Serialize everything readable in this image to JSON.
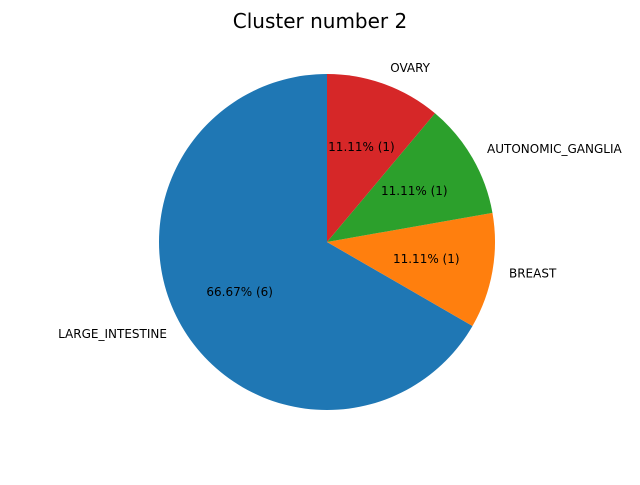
{
  "chart_data": {
    "type": "pie",
    "title": "Cluster number 2",
    "slices": [
      {
        "label": "LARGE_INTESTINE",
        "value": 6,
        "percent": "66.67%",
        "autopct": "66.67%  (6)",
        "color": "#1f77b4"
      },
      {
        "label": "BREAST",
        "value": 1,
        "percent": "11.11%",
        "autopct": "11.11%  (1)",
        "color": "#ff7f0e"
      },
      {
        "label": "AUTONOMIC_GANGLIA",
        "value": 1,
        "percent": "11.11%",
        "autopct": "11.11%  (1)",
        "color": "#2ca02c"
      },
      {
        "label": "OVARY",
        "value": 1,
        "percent": "11.11%",
        "autopct": "11.11%  (1)",
        "color": "#d62728"
      }
    ],
    "start_angle_deg": 90,
    "direction": "counterclockwise",
    "legend": "none"
  }
}
